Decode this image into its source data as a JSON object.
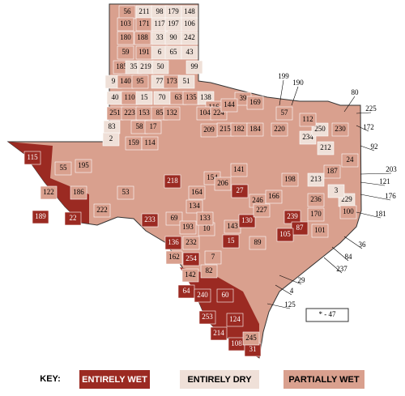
{
  "key": {
    "title": "KEY:",
    "items": [
      {
        "label": "ENTIRELY WET",
        "color": "#9b2a22"
      },
      {
        "label": "ENTIRELY DRY",
        "color": "#efe0d8"
      },
      {
        "label": "PARTIALLY WET",
        "color": "#d9a08e"
      }
    ]
  },
  "note": "* - 47",
  "counties": [
    {
      "label": "56",
      "key": 2
    },
    {
      "label": "211",
      "key": 1
    },
    {
      "label": "98",
      "key": 1
    },
    {
      "label": "179",
      "key": 1
    },
    {
      "label": "148",
      "key": 1
    },
    {
      "label": "103",
      "key": 2
    },
    {
      "label": "171",
      "key": 2
    },
    {
      "label": "117",
      "key": 1
    },
    {
      "label": "197",
      "key": 1
    },
    {
      "label": "106",
      "key": 1
    },
    {
      "label": "180",
      "key": 2
    },
    {
      "label": "188",
      "key": 2
    },
    {
      "label": "33",
      "key": 1
    },
    {
      "label": "90",
      "key": 1
    },
    {
      "label": "242",
      "key": 1
    },
    {
      "label": "59",
      "key": 2
    },
    {
      "label": "191",
      "key": 2
    },
    {
      "label": "6",
      "key": 1
    },
    {
      "label": "65",
      "key": 1
    },
    {
      "label": "43",
      "key": 1
    },
    {
      "label": "185",
      "key": 2
    },
    {
      "label": "35",
      "key": 1
    },
    {
      "label": "219",
      "key": 1
    },
    {
      "label": "50",
      "key": 1
    },
    {
      "label": "99",
      "key": 1
    },
    {
      "label": "9",
      "key": 1
    },
    {
      "label": "140",
      "key": 2
    },
    {
      "label": "95",
      "key": 2
    },
    {
      "label": "77",
      "key": 1
    },
    {
      "label": "173",
      "key": 2
    },
    {
      "label": "51",
      "key": 1
    },
    {
      "label": "40",
      "key": 1
    },
    {
      "label": "110",
      "key": 2
    },
    {
      "label": "15",
      "key": 1
    },
    {
      "label": "70",
      "key": 1
    },
    {
      "label": "63",
      "key": 2
    },
    {
      "label": "135",
      "key": 2
    },
    {
      "label": "138",
      "key": 1
    },
    {
      "label": "251",
      "key": 2
    },
    {
      "label": "223",
      "key": 2
    },
    {
      "label": "153",
      "key": 2
    },
    {
      "label": "85",
      "key": 2
    },
    {
      "label": "132",
      "key": 2
    },
    {
      "label": "83",
      "key": 1
    },
    {
      "label": "58",
      "key": 2
    },
    {
      "label": "17",
      "key": 2
    },
    {
      "label": "2",
      "key": 1
    },
    {
      "label": "159",
      "key": 2
    },
    {
      "label": "114",
      "key": 2
    },
    {
      "label": "115",
      "key": 0
    },
    {
      "label": "55",
      "key": 2
    },
    {
      "label": "195",
      "key": 2
    },
    {
      "label": "122",
      "key": 2
    },
    {
      "label": "186",
      "key": 2
    },
    {
      "label": "189",
      "key": 0
    },
    {
      "label": "22",
      "key": 0
    },
    {
      "label": "222",
      "key": 2
    },
    {
      "label": "53",
      "key": 2
    },
    {
      "label": "218",
      "key": 0
    },
    {
      "label": "233",
      "key": 0
    },
    {
      "label": "69",
      "key": 2
    },
    {
      "label": "136",
      "key": 0
    },
    {
      "label": "232",
      "key": 2
    },
    {
      "label": "254",
      "key": 0
    },
    {
      "label": "162",
      "key": 2
    },
    {
      "label": "142",
      "key": 2
    },
    {
      "label": "64",
      "key": 0
    },
    {
      "label": "240",
      "key": 0
    },
    {
      "label": "60",
      "key": 0
    },
    {
      "label": "214",
      "key": 0
    },
    {
      "label": "124",
      "key": 0
    },
    {
      "label": "253",
      "key": 0
    },
    {
      "label": "108",
      "key": 0
    },
    {
      "label": "31",
      "key": 0
    },
    {
      "label": "245",
      "key": 2
    },
    {
      "label": "7",
      "key": 2
    },
    {
      "label": "82",
      "key": 2
    },
    {
      "label": "143",
      "key": 2
    },
    {
      "label": "89",
      "key": 2
    },
    {
      "label": "130",
      "key": 0
    },
    {
      "label": "15",
      "key": 0
    },
    {
      "label": "27",
      "key": 0
    },
    {
      "label": "246",
      "key": 2
    },
    {
      "label": "166",
      "key": 2
    },
    {
      "label": "239",
      "key": 0
    },
    {
      "label": "87",
      "key": 0
    },
    {
      "label": "101",
      "key": 2
    },
    {
      "label": "105",
      "key": 0
    },
    {
      "label": "198",
      "key": 2
    },
    {
      "label": "236",
      "key": 2
    },
    {
      "label": "229",
      "key": 1
    },
    {
      "label": "3",
      "key": 1
    },
    {
      "label": "187",
      "key": 2
    },
    {
      "label": "213",
      "key": 1
    },
    {
      "label": "170",
      "key": 2
    },
    {
      "label": "100",
      "key": 2
    },
    {
      "label": "24",
      "key": 2
    },
    {
      "label": "212",
      "key": 1
    },
    {
      "label": "234",
      "key": 1
    },
    {
      "label": "250",
      "key": 1
    },
    {
      "label": "230",
      "key": 2
    },
    {
      "label": "112",
      "key": 2
    },
    {
      "label": "39",
      "key": 2
    },
    {
      "label": "169",
      "key": 2
    },
    {
      "label": "116",
      "key": 2
    },
    {
      "label": "215",
      "key": 2
    },
    {
      "label": "182",
      "key": 2
    },
    {
      "label": "184",
      "key": 2
    },
    {
      "label": "220",
      "key": 2
    },
    {
      "label": "57",
      "key": 2
    },
    {
      "label": "104",
      "key": 2
    },
    {
      "label": "224",
      "key": 2
    },
    {
      "label": "209",
      "key": 2
    },
    {
      "label": "154",
      "key": 2
    },
    {
      "label": "206",
      "key": 2
    },
    {
      "label": "164",
      "key": 2
    },
    {
      "label": "134",
      "key": 2
    },
    {
      "label": "193",
      "key": 2
    },
    {
      "label": "10",
      "key": 2
    },
    {
      "label": "133",
      "key": 2
    },
    {
      "label": "144",
      "key": 2
    },
    {
      "label": "141",
      "key": 2
    },
    {
      "label": "227",
      "key": 2
    }
  ],
  "callouts": [
    "199",
    "190",
    "80",
    "225",
    "172",
    "92",
    "203",
    "121",
    "176",
    "181",
    "36",
    "84",
    "237",
    "29",
    "4",
    "125"
  ]
}
